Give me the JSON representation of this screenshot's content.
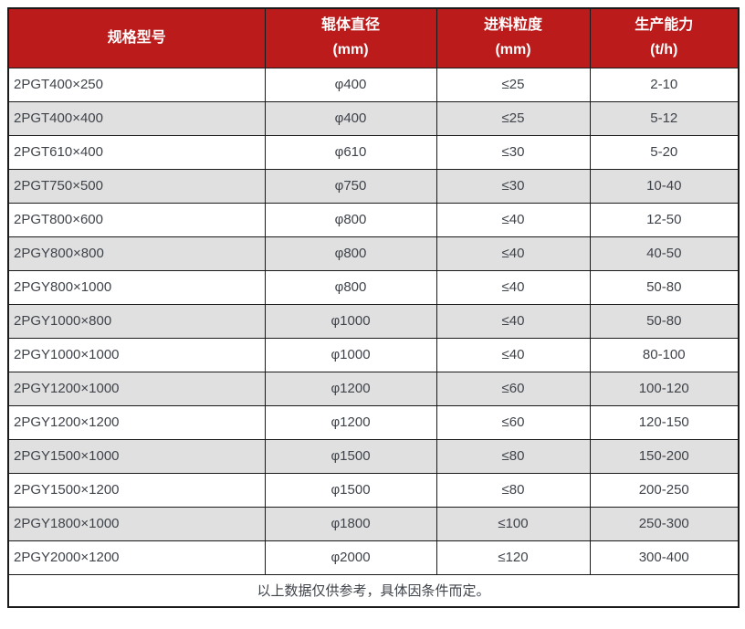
{
  "table": {
    "columns": [
      {
        "title": "规格型号",
        "unit": ""
      },
      {
        "title": "辊体直径",
        "unit": "(mm)"
      },
      {
        "title": "进料粒度",
        "unit": "(mm)"
      },
      {
        "title": "生产能力",
        "unit": "(t/h)"
      }
    ],
    "rows": [
      [
        "2PGT400×250",
        "φ400",
        "≤25",
        "2-10"
      ],
      [
        "2PGT400×400",
        "φ400",
        "≤25",
        "5-12"
      ],
      [
        "2PGT610×400",
        "φ610",
        "≤30",
        "5-20"
      ],
      [
        "2PGT750×500",
        "φ750",
        "≤30",
        "10-40"
      ],
      [
        "2PGT800×600",
        "φ800",
        "≤40",
        "12-50"
      ],
      [
        "2PGY800×800",
        "φ800",
        "≤40",
        "40-50"
      ],
      [
        "2PGY800×1000",
        "φ800",
        "≤40",
        "50-80"
      ],
      [
        "2PGY1000×800",
        "φ1000",
        "≤40",
        "50-80"
      ],
      [
        "2PGY1000×1000",
        "φ1000",
        "≤40",
        "80-100"
      ],
      [
        "2PGY1200×1000",
        "φ1200",
        "≤60",
        "100-120"
      ],
      [
        "2PGY1200×1200",
        "φ1200",
        "≤60",
        "120-150"
      ],
      [
        "2PGY1500×1000",
        "φ1500",
        "≤80",
        "150-200"
      ],
      [
        "2PGY1500×1200",
        "φ1500",
        "≤80",
        "200-250"
      ],
      [
        "2PGY1800×1000",
        "φ1800",
        "≤100",
        "250-300"
      ],
      [
        "2PGY2000×1200",
        "φ2000",
        "≤120",
        "300-400"
      ]
    ],
    "footer_note": "以上数据仅供参考，具体因条件而定。"
  },
  "colors": {
    "header_bg": "#bb1b1b",
    "header_text": "#ffffff",
    "stripe_bg": "#e0e0e0",
    "body_text": "#3f434a",
    "border": "#1a1a1a"
  }
}
